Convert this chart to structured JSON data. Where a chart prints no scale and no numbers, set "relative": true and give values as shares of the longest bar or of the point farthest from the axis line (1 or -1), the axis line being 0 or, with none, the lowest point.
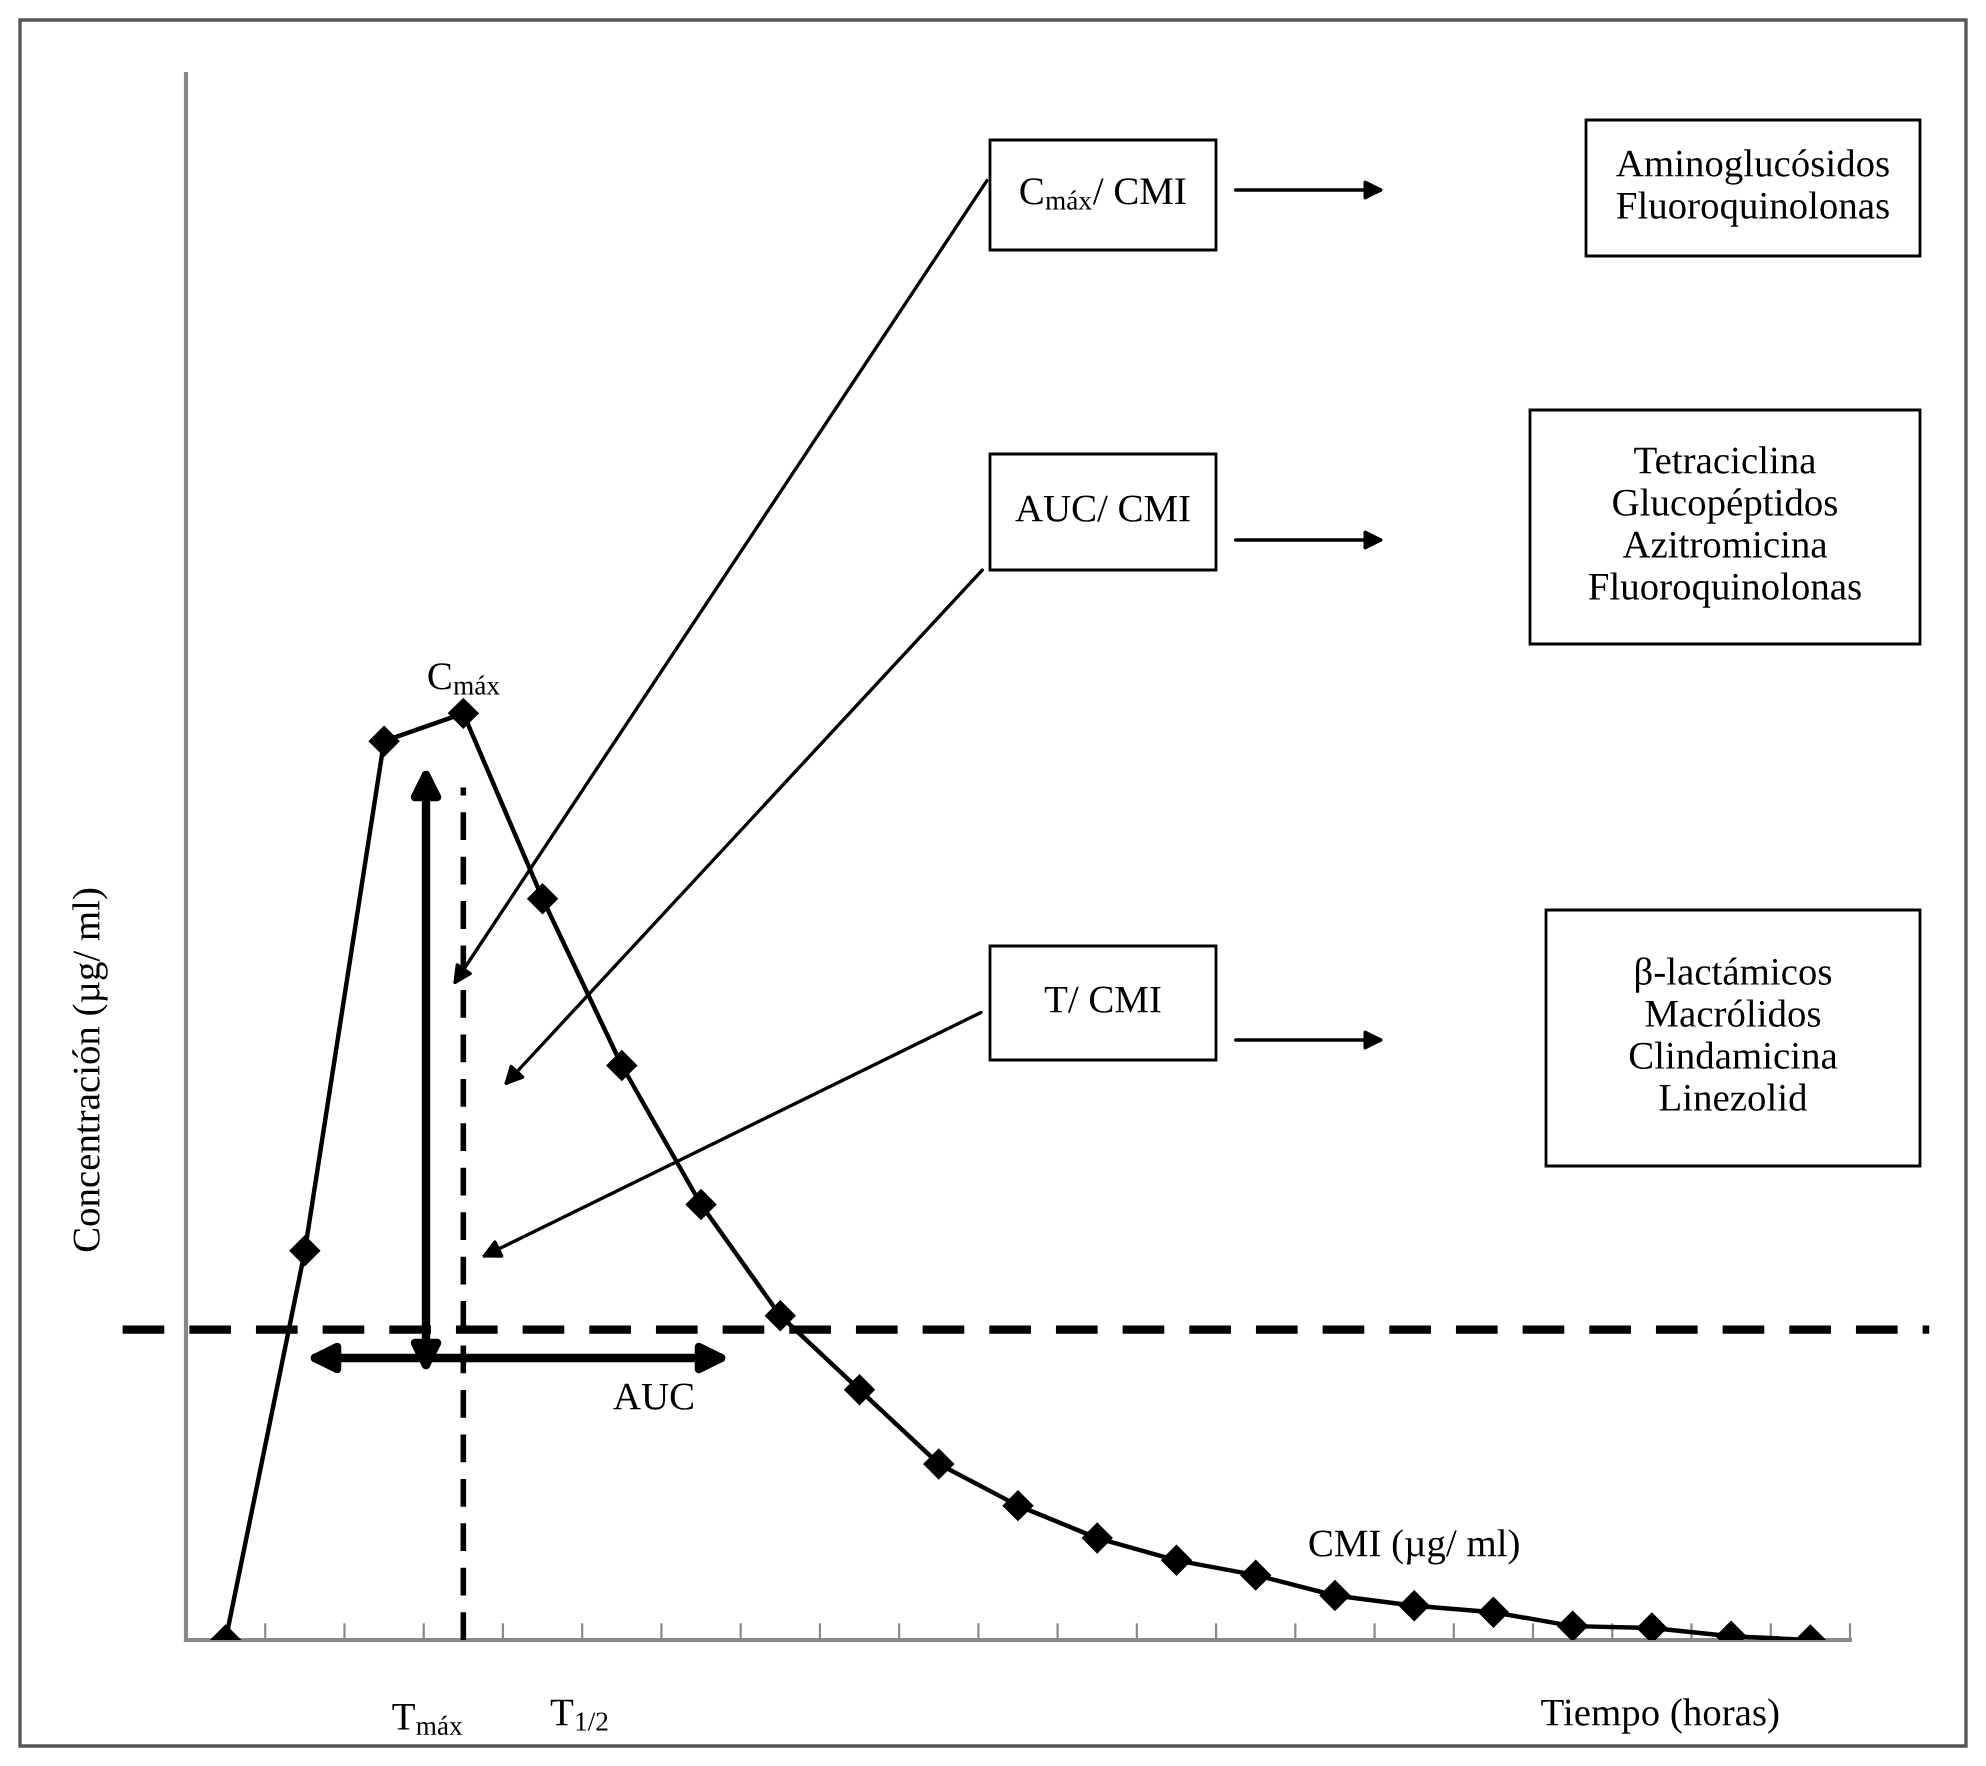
{
  "chart_data": {
    "type": "line",
    "relative": true,
    "ylabel": "Concentración (µg/ ml)",
    "xlabel": "Tiempo (horas)",
    "categories": [
      null,
      null,
      null,
      null,
      null,
      null,
      null,
      null,
      null,
      null,
      null,
      null,
      null,
      null,
      null,
      null,
      null,
      null,
      null,
      null,
      null
    ],
    "series": [
      {
        "color": "#000000",
        "values": [
          0,
          0.42,
          0.97,
          1.0,
          0.8,
          0.62,
          0.47,
          0.35,
          0.27,
          0.19,
          0.145,
          0.11,
          0.086,
          0.07,
          0.048,
          0.037,
          0.03,
          0.015,
          0.013,
          0.004,
          0
        ]
      }
    ],
    "marker": "diamond",
    "line_style": "solid",
    "grid": false,
    "ref_lines": [
      {
        "axis": "y",
        "value": 0.335,
        "label": "CMI (µg/ ml)",
        "line_style": "dashed",
        "color": "#000000"
      },
      {
        "axis": "x",
        "label": "T$_{máx}$",
        "line_style": "dashed",
        "color": "#000000"
      }
    ],
    "annotations": [
      "C$_{máx}$",
      "AUC",
      "T$_{1/2}$",
      "C$_{máx}$/ CMI",
      "AUC/ CMI",
      "T/ CMI",
      "Aminoglucósidos\nFluoroquinolonas",
      "Tetraciclina\nGlucopéptidos\nAzitromicina\nFluoroquinolonas",
      "β-lactámicos\nMacrólidos\nClindamicina\nLinezolid"
    ]
  }
}
